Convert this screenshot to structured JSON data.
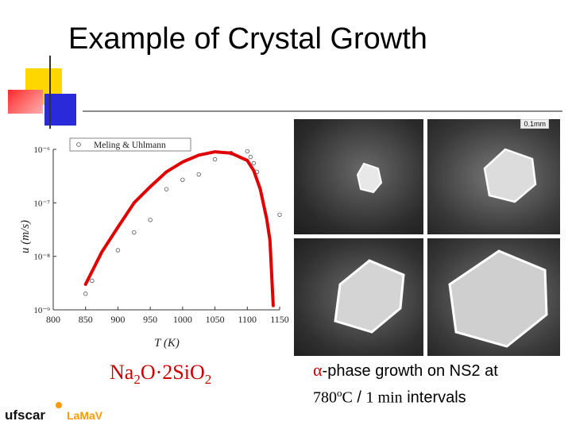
{
  "slide": {
    "title": "Example of Crystal Growth",
    "formula": {
      "a": "Na",
      "a_sub": "2",
      "b": "O·2SiO",
      "b_sub": "2"
    },
    "caption": {
      "line1_symbol": "α",
      "line1_text": "-phase growth on NS2 at",
      "line2_temp": "780",
      "line2_deg": "o",
      "line2_unit": "C",
      "line2_sep": " / ",
      "line2_num": "1 min",
      "line2_tail": " intervals"
    },
    "photo_scale_label": "0.1mm",
    "logo": {
      "brand_text": "ufscar",
      "lab_text": "LaMaV"
    },
    "colors": {
      "accent_yellow": "#ffd700",
      "accent_red": "#ff3333",
      "accent_blue": "#2a2adb",
      "curve": "#e00000",
      "logo_orange": "#ff9900"
    }
  },
  "chart_data": {
    "type": "scatter",
    "title": "",
    "xlabel": "T (K)",
    "ylabel": "u (m/s)",
    "xlim": [
      800,
      1150
    ],
    "ylim_log10": [
      -9,
      -6
    ],
    "yscale": "log",
    "x_ticks": [
      "800",
      "850",
      "900",
      "950",
      "1000",
      "1050",
      "1100",
      "1150"
    ],
    "y_ticks": [
      "10⁻⁶",
      "10⁻⁷",
      "10⁻⁸",
      "10⁻⁹"
    ],
    "legend": {
      "label": "Meling & Uhlmann",
      "position": "top"
    },
    "series": [
      {
        "name": "Meling & Uhlmann",
        "x": [
          850,
          860,
          900,
          925,
          950,
          975,
          1000,
          1025,
          1050,
          1075,
          1100,
          1105,
          1110,
          1115,
          1150
        ],
        "y": [
          2e-09,
          3.5e-09,
          1.3e-08,
          2.8e-08,
          4.8e-08,
          1.8e-07,
          2.7e-07,
          3.4e-07,
          6.5e-07,
          8.5e-07,
          9.2e-07,
          7.2e-07,
          5.5e-07,
          3.8e-07,
          6e-08
        ]
      },
      {
        "x": [
          850,
          875,
          900,
          925,
          950,
          975,
          1000,
          1025,
          1050,
          1075,
          1100,
          1110,
          1120,
          1130,
          1135,
          1140
        ],
        "y": [
          3e-09,
          1.2e-08,
          3.5e-08,
          1e-07,
          2e-07,
          3.8e-07,
          5.8e-07,
          7.8e-07,
          9e-07,
          8.5e-07,
          6.2e-07,
          4e-07,
          1.8e-07,
          5e-08,
          2e-08,
          1.2e-09
        ]
      }
    ]
  }
}
